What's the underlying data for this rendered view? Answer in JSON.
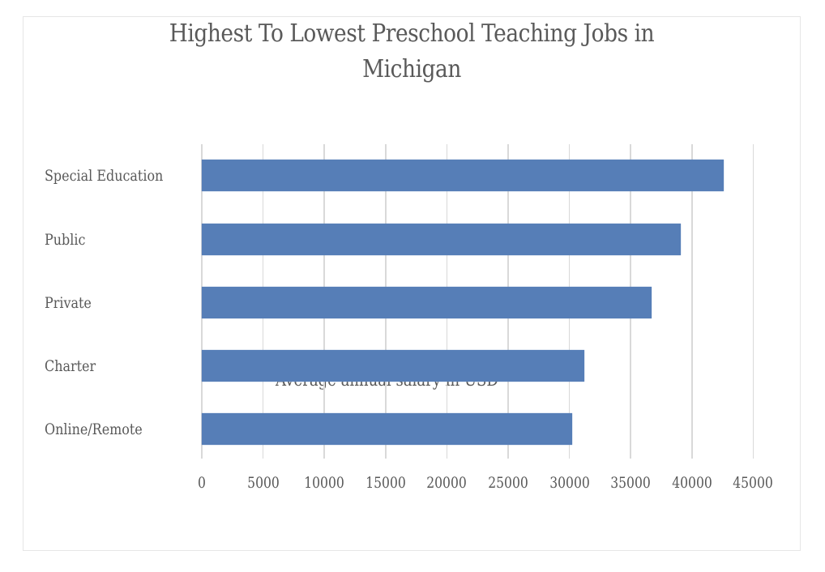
{
  "chart_data": {
    "type": "bar",
    "orientation": "horizontal",
    "title": "Highest To Lowest Preschool Teaching Jobs in Michigan",
    "title_lines": [
      "Highest To Lowest Preschool Teaching Jobs in",
      "Michigan"
    ],
    "categories": [
      "Special Education",
      "Public",
      "Private",
      "Charter",
      "Online/Remote"
    ],
    "values": [
      42600,
      39100,
      36700,
      31200,
      30200
    ],
    "series": [
      {
        "name": "Average annual salary in USD",
        "values": [
          42600,
          39100,
          36700,
          31200,
          30200
        ],
        "color": "#567eb7"
      }
    ],
    "xlabel": "Average annual salary in USD",
    "ylabel": "",
    "xlim": [
      0,
      45000
    ],
    "xticks": [
      "0",
      "5000",
      "10000",
      "15000",
      "20000",
      "25000",
      "30000",
      "35000",
      "40000",
      "45000"
    ],
    "grid": true,
    "legend": "none"
  },
  "colors": {
    "bar": "#567eb7",
    "gridline": "#d9d9d9",
    "text": "#595959",
    "frame_border": "#e6e6e6"
  }
}
